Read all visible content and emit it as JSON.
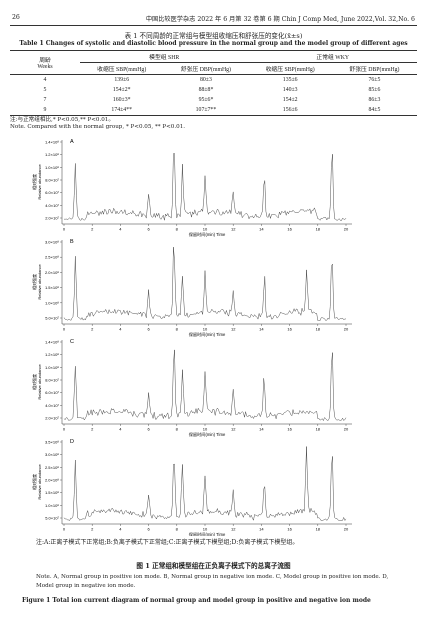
{
  "header": {
    "page": "26",
    "journal": "中国比较医学杂志 2022 年 6 月第 32 卷第 6 期  Chin J Comp Med, June 2022,Vol. 32,No. 6"
  },
  "table": {
    "caption_cn": "表 1  不同周龄的正常组与模型组收缩压和舒张压的变化(x̄±s)",
    "caption_en": "Table 1   Changes of systolic and diastolic blood pressure in the normal group and the model group of different ages",
    "weeks_header": [
      "周龄",
      "Weeks"
    ],
    "group_headers": [
      "模型组 SHR",
      "正常组 WKY"
    ],
    "sub_headers": [
      "收缩压 SBP(mmHg)",
      "舒张压 DBP(mmHg)",
      "收缩压 SBP(mmHg)",
      "舒张压 DBP(mmHg)"
    ],
    "rows": [
      [
        "4",
        "139±6",
        "80±3",
        "135±6",
        "76±5"
      ],
      [
        "5",
        "154±2*",
        "88±8*",
        "140±3",
        "85±6"
      ],
      [
        "7",
        "160±3*",
        "95±6*",
        "154±2",
        "86±3"
      ],
      [
        "9",
        "174±4**",
        "107±7**",
        "156±6",
        "84±5"
      ]
    ],
    "note_cn": "注:与正常组相比,* P<0.05,** P<0.01。",
    "note_en": "Note. Compared with the normal group, * P<0.05, ** P<0.01."
  },
  "figure": {
    "panels": [
      {
        "letter": "A",
        "yticks": [
          "1.4×10⁸",
          "1.2×10⁸",
          "1.0×10⁸",
          "8.0×10⁷",
          "6.0×10⁷",
          "4.0×10⁷",
          "2.0×10⁷"
        ]
      },
      {
        "letter": "B",
        "yticks": [
          "3.0×10⁸",
          "2.5×10⁸",
          "2.0×10⁸",
          "1.5×10⁸",
          "1.0×10⁸",
          "5.0×10⁷"
        ]
      },
      {
        "letter": "C",
        "yticks": [
          "1.4×10⁸",
          "1.2×10⁸",
          "1.0×10⁸",
          "8.0×10⁷",
          "6.0×10⁷",
          "4.0×10⁷",
          "2.0×10⁷"
        ]
      },
      {
        "letter": "D",
        "yticks": [
          "3.5×10⁸",
          "3.0×10⁸",
          "2.5×10⁸",
          "2.0×10⁸",
          "1.5×10⁸",
          "1.0×10⁸",
          "5.0×10⁷"
        ]
      }
    ],
    "y_label_cn": "相对强度",
    "y_label_en": "Relative abundance",
    "x_label": "保留时间(min) Time",
    "xticks": [
      "0",
      "2",
      "4",
      "6",
      "8",
      "10",
      "12",
      "14",
      "16",
      "18",
      "20"
    ],
    "note_cn": "注:A:正离子模式下正常组;B:负离子模式下正常组;C:正离子模式下模型组;D:负离子模式下模型组。",
    "title_cn": "图 1   正常组和模型组在正负离子模式下的总离子流图",
    "note_en": "Note. A, Normal group in positive ion mode. B, Normal group in negative ion mode. C, Model group in positive ion mode. D, Model group in negative ion mode.",
    "title_en": "Figure 1   Total ion current diagram of normal group and model group in positive and negative ion mode"
  }
}
